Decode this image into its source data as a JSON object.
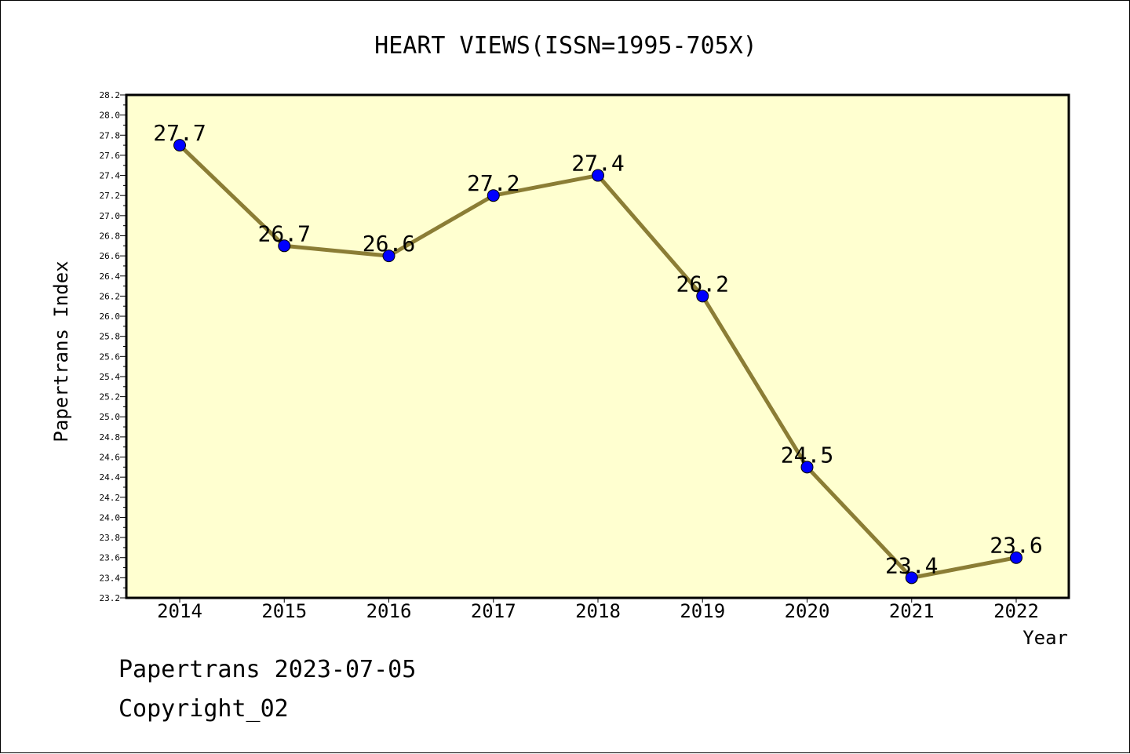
{
  "chart_data": {
    "type": "line",
    "title": "HEART VIEWS(ISSN=1995-705X)",
    "xlabel": "Year",
    "ylabel": "Papertrans Index",
    "categories": [
      "2014",
      "2015",
      "2016",
      "2017",
      "2018",
      "2019",
      "2020",
      "2021",
      "2022"
    ],
    "series": [
      {
        "values": [
          27.7,
          26.7,
          26.6,
          27.2,
          27.4,
          26.2,
          24.5,
          23.4,
          23.6
        ]
      }
    ],
    "data_labels": [
      "27.7",
      "26.7",
      "26.6",
      "27.2",
      "27.4",
      "26.2",
      "24.5",
      "23.4",
      "23.6"
    ],
    "ylim": [
      23.2,
      28.2
    ],
    "y_tick_labels": [
      "23.2",
      "23.4",
      "23.6",
      "23.8",
      "24.0",
      "24.2",
      "24.4",
      "24.6",
      "24.8",
      "25.0",
      "25.2",
      "25.4",
      "25.6",
      "25.8",
      "26.0",
      "26.2",
      "26.4",
      "26.6",
      "26.8",
      "27.0",
      "27.2",
      "27.4",
      "27.6",
      "27.8",
      "28.0",
      "28.2"
    ],
    "grid": false,
    "colors": {
      "plot_background": "#ffffd0",
      "line": "#8b7d35",
      "marker": "#0000ff"
    }
  },
  "footer": {
    "line1": "Papertrans 2023-07-05",
    "line2": "Copyright_02"
  }
}
